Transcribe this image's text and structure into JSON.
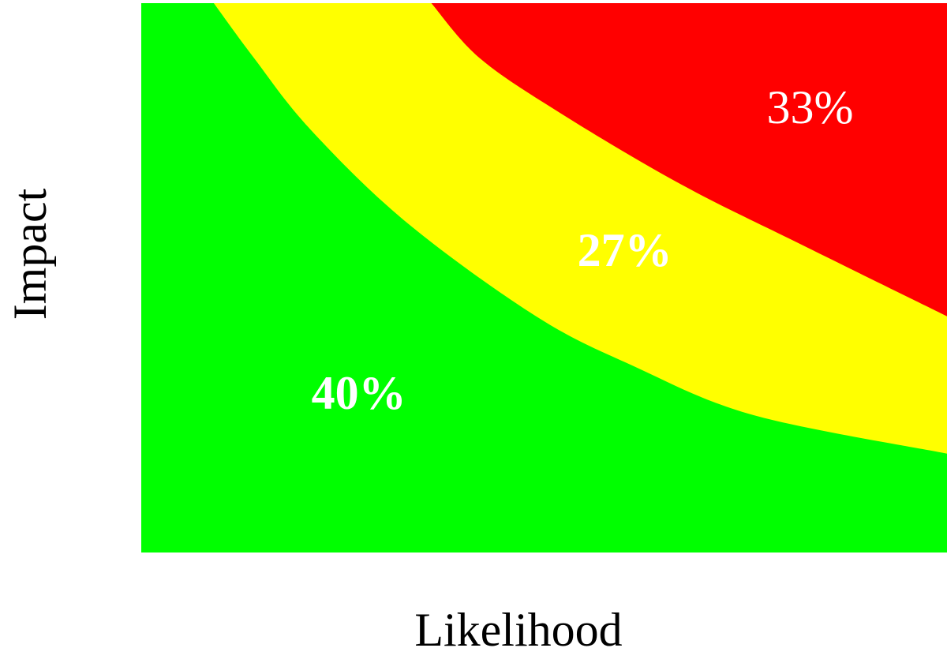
{
  "chart_data": {
    "type": "heatmap",
    "title": "",
    "xlabel": "Likelihood",
    "ylabel": "Impact",
    "xlim": [
      0,
      1
    ],
    "ylim": [
      0,
      1
    ],
    "grid": false,
    "legend": "none",
    "zones": [
      {
        "label": "40%",
        "value": 40,
        "color": "#00ff00",
        "bold": true
      },
      {
        "label": "27%",
        "value": 27,
        "color": "#ffff00",
        "bold": true
      },
      {
        "label": "33%",
        "value": 33,
        "color": "#ff0000",
        "bold": false
      }
    ],
    "boundaries": [
      {
        "between": [
          "40%",
          "27%"
        ],
        "points": [
          [
            0.09,
            1.0
          ],
          [
            0.14,
            0.9
          ],
          [
            0.21,
            0.77
          ],
          [
            0.33,
            0.6
          ],
          [
            0.49,
            0.43
          ],
          [
            0.61,
            0.34
          ],
          [
            0.76,
            0.25
          ],
          [
            1.0,
            0.18
          ]
        ]
      },
      {
        "between": [
          "27%",
          "33%"
        ],
        "points": [
          [
            0.36,
            1.0
          ],
          [
            0.42,
            0.9
          ],
          [
            0.52,
            0.8
          ],
          [
            0.67,
            0.67
          ],
          [
            0.82,
            0.56
          ],
          [
            1.0,
            0.43
          ]
        ]
      }
    ],
    "label_positions": {
      "40%": [
        0.27,
        0.29
      ],
      "27%": [
        0.6,
        0.55
      ],
      "33%": [
        0.83,
        0.81
      ]
    }
  }
}
